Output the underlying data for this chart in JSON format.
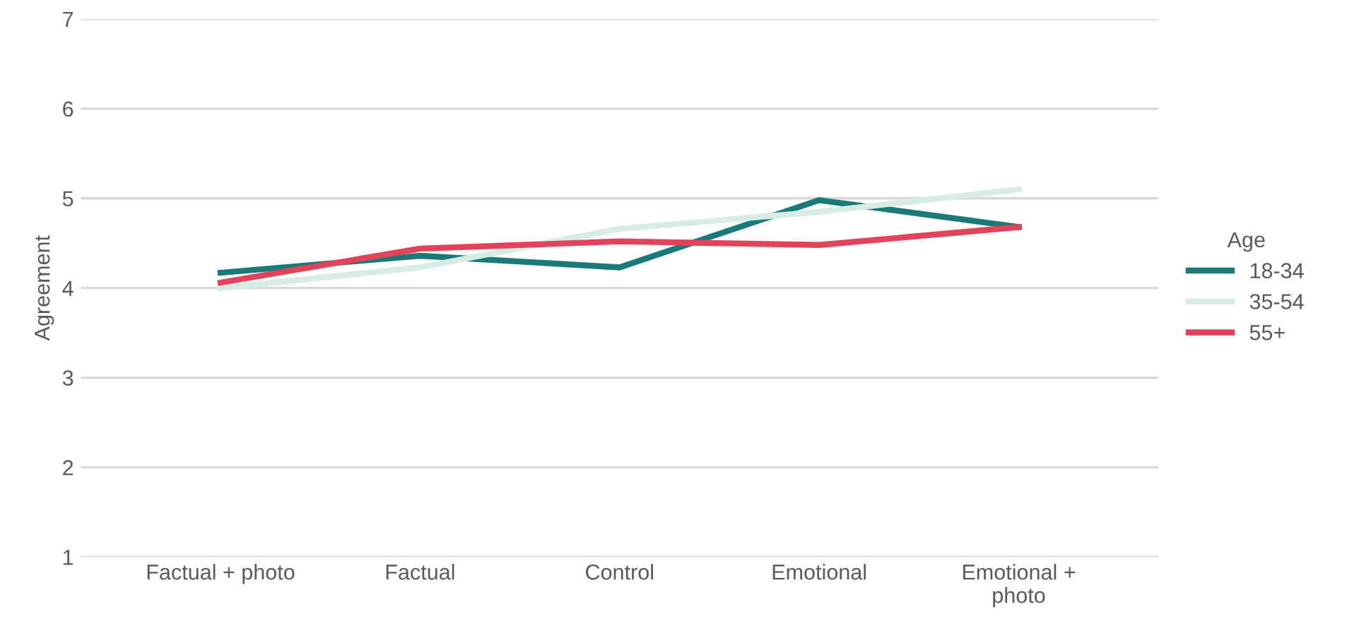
{
  "chart_data": {
    "type": "line",
    "ylabel": "Agreement",
    "legend_title": "Age",
    "categories": [
      "Factual + photo",
      "Factual",
      "Control",
      "Emotional",
      "Emotional +\nphoto"
    ],
    "series": [
      {
        "name": "18-34",
        "color": "#1a7a7a",
        "values": [
          4.17,
          4.36,
          4.23,
          4.98,
          4.68
        ]
      },
      {
        "name": "35-54",
        "color": "#d6ece4",
        "values": [
          4.0,
          4.23,
          4.66,
          4.85,
          5.1
        ]
      },
      {
        "name": "55+",
        "color": "#e2435a",
        "values": [
          4.06,
          4.44,
          4.52,
          4.48,
          4.68
        ]
      }
    ],
    "ylim": [
      1,
      7
    ],
    "yticks": [
      1,
      2,
      3,
      4,
      5,
      6,
      7
    ],
    "grid": "y",
    "legend": "right"
  }
}
